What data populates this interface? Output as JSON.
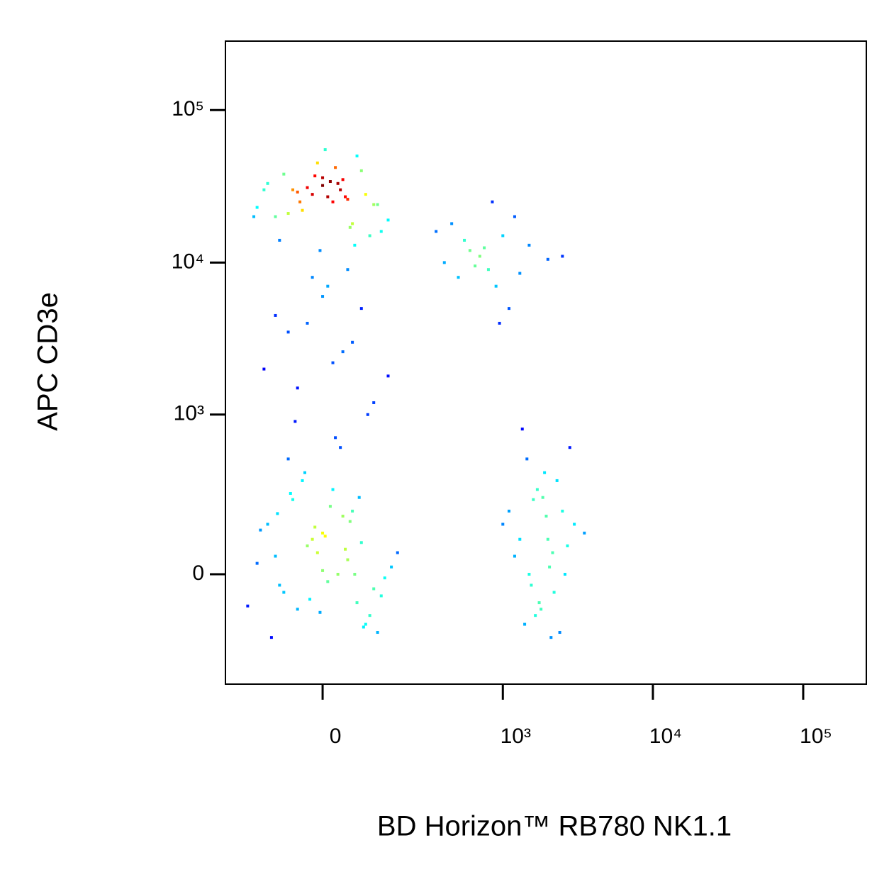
{
  "chart_data": {
    "type": "scatter",
    "xlabel": "BD Horizon™ RB780 NK1.1",
    "ylabel": "APC CD3e",
    "xscale": "biexponential",
    "yscale": "biexponential",
    "xlim": [
      -267,
      263000
    ],
    "ylim": [
      -458,
      283000
    ],
    "xticks": [
      0,
      {
        "value": 1000,
        "label": "10³"
      },
      {
        "value": 10000,
        "label": "10⁴"
      },
      {
        "value": 100000,
        "label": "10⁵"
      }
    ],
    "yticks": [
      0,
      {
        "value": 1000,
        "label": "10³"
      },
      {
        "value": 10000,
        "label": "10⁴"
      },
      {
        "value": 100000,
        "label": "10⁵"
      }
    ],
    "x": [
      -100,
      -50,
      0,
      30,
      60,
      -80,
      20,
      -30,
      90,
      -120,
      10,
      50,
      -60,
      120,
      -20,
      70,
      -150,
      40,
      -10,
      100,
      -70,
      0,
      130,
      -40,
      80,
      -110,
      25,
      55,
      -90,
      160,
      -35,
      15,
      -5,
      45,
      -140,
      110,
      -55,
      75,
      5,
      -25,
      140,
      -95,
      35,
      65,
      -15,
      -180,
      180,
      85,
      -65,
      95,
      -60,
      -20,
      0,
      20,
      40,
      -100,
      80,
      -40,
      10,
      60,
      -130,
      120,
      -80,
      30,
      -10,
      100,
      -50,
      50,
      0,
      -150,
      150,
      -30,
      70,
      -90,
      90,
      15,
      -5,
      25,
      -70,
      45,
      -120,
      130,
      5,
      -45,
      35,
      -160,
      65,
      -15,
      110,
      55,
      -50,
      20,
      60,
      -100,
      0,
      110,
      -20,
      40,
      80,
      -70,
      150,
      10,
      -130,
      50,
      -30,
      400,
      600,
      800,
      1000,
      500,
      1200,
      700,
      900,
      1500,
      350,
      650,
      1100,
      2000,
      550,
      850,
      1300,
      750,
      450,
      2500,
      950,
      1500,
      2000,
      1800,
      2500,
      1200,
      2200,
      1700,
      3000,
      1400,
      1900,
      2600,
      1600,
      2100,
      1300,
      2800,
      1750,
      2300,
      1100,
      2050,
      1650,
      2700,
      1450,
      1950,
      3500,
      1550,
      2400,
      1850,
      1000,
      2150,
      1350
    ],
    "values": [
      50,
      -100,
      120,
      0,
      200,
      -50,
      300,
      80,
      -150,
      150,
      -20,
      40,
      250,
      -180,
      100,
      -80,
      30,
      180,
      60,
      -120,
      500,
      10,
      -60,
      350,
      90,
      -200,
      700,
      160,
      -30,
      20,
      400,
      220,
      -110,
      70,
      130,
      -40,
      900,
      260,
      110,
      -70,
      -10,
      190,
      600,
      0,
      140,
      -90,
      60,
      -160,
      280,
      1000,
      30000,
      28000,
      32000,
      25000,
      35000,
      20000,
      40000,
      22000,
      27000,
      18000,
      30000,
      24000,
      38000,
      33000,
      45000,
      15000,
      29000,
      26000,
      36000,
      23000,
      19000,
      31000,
      50000,
      14000,
      28000,
      34000,
      12000,
      42000,
      21000,
      27000,
      33000,
      16000,
      55000,
      25000,
      30000,
      20000,
      13000,
      37000,
      24000,
      17000,
      1500,
      2200,
      3000,
      4500,
      6000,
      1200,
      8000,
      2600,
      5000,
      3500,
      1800,
      7000,
      2000,
      9000,
      4000,
      10000,
      12000,
      9000,
      15000,
      8000,
      20000,
      11000,
      7000,
      13000,
      16000,
      9500,
      5000,
      10500,
      14000,
      25000,
      8500,
      12500,
      18000,
      11000,
      4000,
      0,
      100,
      -100,
      200,
      50,
      -50,
      300,
      150,
      -150,
      400,
      0,
      250,
      -200,
      100,
      600,
      -80,
      350,
      200,
      20,
      -120,
      80,
      500,
      180,
      120,
      -30,
      -180,
      260,
      150,
      60,
      800
    ]
  }
}
